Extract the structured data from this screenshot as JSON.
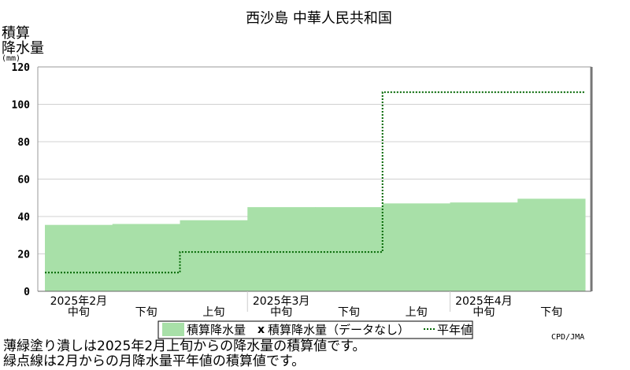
{
  "chart_data": {
    "type": "area",
    "title": "西沙島 中華人民共和国",
    "ylabel_lines": [
      "積算",
      "降水量",
      "(mm)"
    ],
    "ylim": [
      0,
      120
    ],
    "yticks": [
      "0",
      "20",
      "40",
      "60",
      "80",
      "100",
      "120"
    ],
    "ytick_values": [
      0,
      20,
      40,
      60,
      80,
      100,
      120
    ],
    "periods": [
      "2025年2月 中旬",
      "2025年2月 下旬",
      "2025年3月 上旬",
      "2025年3月 中旬",
      "2025年3月 下旬",
      "2025年4月 上旬",
      "2025年4月 中旬",
      "2025年4月 下旬"
    ],
    "xtick_labels": [
      "中旬",
      "下旬",
      "上旬",
      "中旬",
      "下旬",
      "上旬",
      "中旬",
      "下旬"
    ],
    "month_labels": [
      {
        "label": "2025年2月",
        "period_index": 0
      },
      {
        "label": "2025年3月",
        "period_index": 3
      },
      {
        "label": "2025年4月",
        "period_index": 6
      }
    ],
    "series": [
      {
        "name": "積算降水量",
        "style": "filled-step",
        "color": "#a8e0a8",
        "values": [
          35.5,
          36,
          38,
          45,
          45,
          47,
          47.5,
          49.5
        ]
      },
      {
        "name": "平年値",
        "style": "dotted-step",
        "color": "#006600",
        "values": [
          10,
          10,
          21,
          21,
          21,
          106.5,
          106.5,
          106.5
        ]
      }
    ],
    "legend": [
      {
        "label": "積算降水量",
        "kind": "swatch"
      },
      {
        "label": "積算降水量（データなし）",
        "kind": "cross",
        "marker": "x"
      },
      {
        "label": "平年値",
        "kind": "dotted-line"
      }
    ],
    "grid": true,
    "legend_position": "bottom"
  },
  "credit": "CPD/JMA",
  "notes": [
    "薄緑塗り潰しは2025年2月上旬からの降水量の積算値です。",
    "緑点線は2月からの月降水量平年値の積算値です。"
  ]
}
